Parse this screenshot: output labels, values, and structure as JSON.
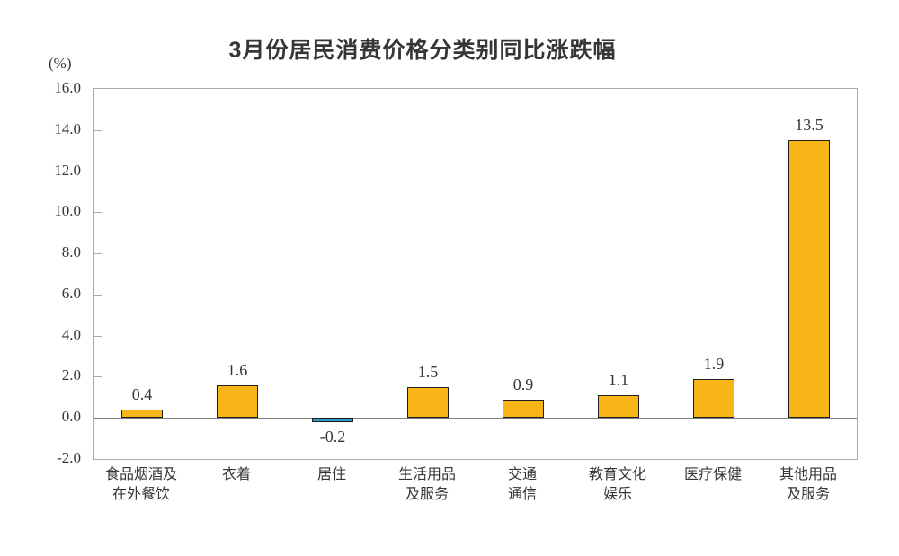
{
  "chart_data": {
    "type": "bar",
    "title": "3月份居民消费价格分类别同比涨跌幅",
    "ylabel": "(%)",
    "xlabel": "",
    "ylim": [
      -2.0,
      16.0
    ],
    "ytick_interval": 2.0,
    "yticks": [
      "16.0",
      "14.0",
      "12.0",
      "10.0",
      "8.0",
      "6.0",
      "4.0",
      "2.0",
      "0.0",
      "-2.0"
    ],
    "categories": [
      "食品烟酒及在外餐饮",
      "衣着",
      "居住",
      "生活用品及服务",
      "交通通信",
      "教育文化娱乐",
      "医疗保健",
      "其他用品及服务"
    ],
    "category_label_lines": [
      [
        "食品烟酒及",
        "在外餐饮"
      ],
      [
        "衣着"
      ],
      [
        "居住"
      ],
      [
        "生活用品",
        "及服务"
      ],
      [
        "交通",
        "通信"
      ],
      [
        "教育文化",
        "娱乐"
      ],
      [
        "医疗保健"
      ],
      [
        "其他用品",
        "及服务"
      ]
    ],
    "values": [
      0.4,
      1.6,
      -0.2,
      1.5,
      0.9,
      1.1,
      1.9,
      13.5
    ],
    "value_labels": [
      "0.4",
      "1.6",
      "-0.2",
      "1.5",
      "0.9",
      "1.1",
      "1.9",
      "13.5"
    ],
    "grid": false,
    "legend": "none",
    "colors": {
      "positive_bar": "#F8B517",
      "negative_bar": "#2D9BC8",
      "bar_border": "#1F1F1F",
      "frame": "#ABABAB",
      "zero_line": "#7F7F7F",
      "text": "#363636"
    }
  }
}
